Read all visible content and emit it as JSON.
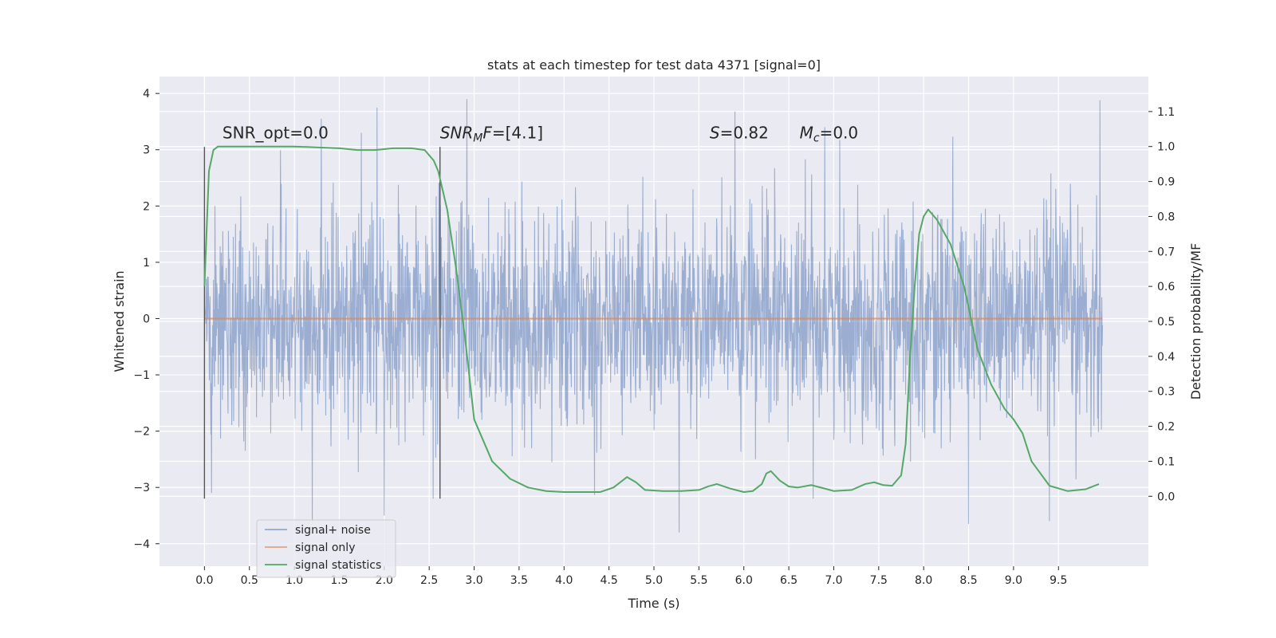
{
  "chart_data": {
    "type": "line",
    "title": "stats at each timestep for test data 4371 [signal=0]",
    "xlabel": "Time (s)",
    "ylabel": "Whitened strain",
    "y2label": "Detection probability/MF",
    "xlim": [
      -0.5,
      10.5
    ],
    "ylim": [
      -4.4,
      4.3
    ],
    "y2lim": [
      -0.2,
      1.2
    ],
    "x_ticks": [
      0.0,
      0.5,
      1.0,
      1.5,
      2.0,
      2.5,
      3.0,
      3.5,
      4.0,
      4.5,
      5.0,
      5.5,
      6.0,
      6.5,
      7.0,
      7.5,
      8.0,
      8.5,
      9.0,
      9.5
    ],
    "x_tick_labels": [
      "0.0",
      "0.5",
      "1.0",
      "1.5",
      "2.0",
      "2.5",
      "3.0",
      "3.5",
      "4.0",
      "4.5",
      "5.0",
      "5.5",
      "6.0",
      "6.5",
      "7.0",
      "7.5",
      "8.0",
      "8.5",
      "9.0",
      "9.5"
    ],
    "y_ticks": [
      -4,
      -3,
      -2,
      -1,
      0,
      1,
      2,
      3,
      4
    ],
    "y_tick_labels": [
      "−4",
      "−3",
      "−2",
      "−1",
      "0",
      "1",
      "2",
      "3",
      "4"
    ],
    "y2_ticks": [
      0.0,
      0.1,
      0.2,
      0.3,
      0.4,
      0.5,
      0.6,
      0.7,
      0.8,
      0.9,
      1.0,
      1.1
    ],
    "y2_tick_labels": [
      "0.0",
      "0.1",
      "0.2",
      "0.3",
      "0.4",
      "0.5",
      "0.6",
      "0.7",
      "0.8",
      "0.9",
      "1.0",
      "1.1"
    ],
    "grid": true,
    "legend_position": "lower-left",
    "series": [
      {
        "name": "signal+ noise",
        "color": "#4c72b0",
        "style": "noise",
        "x_range": [
          0.0,
          9.99
        ],
        "typical_envelope": [
          -1.8,
          1.8
        ],
        "peak_envelope": [
          -3.8,
          3.9
        ],
        "spikes": [
          {
            "x": 0.08,
            "y": -3.1
          },
          {
            "x": 1.2,
            "y": -3.6
          },
          {
            "x": 1.92,
            "y": 3.75
          },
          {
            "x": 2.0,
            "y": -3.5
          },
          {
            "x": 2.92,
            "y": 3.9
          },
          {
            "x": 5.28,
            "y": -3.8
          },
          {
            "x": 5.9,
            "y": 3.68
          },
          {
            "x": 8.5,
            "y": -3.65
          },
          {
            "x": 9.96,
            "y": 3.88
          },
          {
            "x": 9.4,
            "y": -3.6
          },
          {
            "x": 1.3,
            "y": 3.55
          },
          {
            "x": 6.9,
            "y": 3.4
          }
        ]
      },
      {
        "name": "signal only",
        "color": "#dd8452",
        "x": [
          0.0,
          9.99
        ],
        "values": [
          0.0,
          0.0
        ]
      },
      {
        "name": "signal statistics",
        "color": "#55a868",
        "axis": "right",
        "x": [
          0.0,
          0.05,
          0.1,
          0.15,
          0.3,
          0.6,
          1.0,
          1.5,
          1.7,
          1.9,
          2.1,
          2.3,
          2.45,
          2.55,
          2.6,
          2.7,
          2.8,
          2.9,
          3.0,
          3.2,
          3.4,
          3.6,
          3.8,
          4.0,
          4.2,
          4.4,
          4.55,
          4.7,
          4.8,
          4.9,
          5.1,
          5.3,
          5.5,
          5.6,
          5.7,
          5.85,
          6.0,
          6.1,
          6.2,
          6.25,
          6.3,
          6.4,
          6.5,
          6.6,
          6.75,
          6.9,
          7.0,
          7.2,
          7.35,
          7.45,
          7.55,
          7.65,
          7.75,
          7.8,
          7.85,
          7.9,
          7.95,
          8.0,
          8.05,
          8.15,
          8.3,
          8.45,
          8.6,
          8.75,
          8.9,
          9.0,
          9.1,
          9.2,
          9.4,
          9.6,
          9.8,
          9.95
        ],
        "values": [
          0.6,
          0.93,
          0.99,
          1.0,
          1.0,
          1.0,
          1.0,
          0.995,
          0.99,
          0.99,
          0.995,
          0.995,
          0.99,
          0.96,
          0.93,
          0.82,
          0.65,
          0.45,
          0.22,
          0.1,
          0.05,
          0.025,
          0.015,
          0.012,
          0.012,
          0.012,
          0.025,
          0.055,
          0.04,
          0.018,
          0.015,
          0.015,
          0.018,
          0.028,
          0.035,
          0.022,
          0.012,
          0.015,
          0.035,
          0.065,
          0.072,
          0.045,
          0.028,
          0.025,
          0.032,
          0.022,
          0.015,
          0.018,
          0.035,
          0.04,
          0.032,
          0.03,
          0.06,
          0.15,
          0.4,
          0.6,
          0.75,
          0.8,
          0.82,
          0.79,
          0.72,
          0.6,
          0.42,
          0.32,
          0.25,
          0.22,
          0.18,
          0.1,
          0.03,
          0.015,
          0.02,
          0.035
        ]
      }
    ],
    "vertical_markers": [
      0.0,
      2.62
    ],
    "vertical_marker_range": [
      -3.2,
      3.05
    ],
    "annotations": [
      {
        "text": "SNR_opt=0.0",
        "x": 0.2,
        "y": 3.2,
        "style": "plain"
      },
      {
        "text_parts": [
          {
            "t": "SNR",
            "italic": true
          },
          {
            "t": "M",
            "italic": true,
            "sub": true
          },
          {
            "t": "F",
            "italic": true
          },
          {
            "t": "=[4.1]",
            "italic": false
          }
        ],
        "x": 2.62,
        "y": 3.2
      },
      {
        "text_parts": [
          {
            "t": "S",
            "italic": true
          },
          {
            "t": "=0.82",
            "italic": false
          }
        ],
        "x": 5.62,
        "y": 3.2
      },
      {
        "text_parts": [
          {
            "t": "M",
            "italic": true
          },
          {
            "t": "c",
            "italic": true,
            "sub": true
          },
          {
            "t": "=0.0",
            "italic": false
          }
        ],
        "x": 6.62,
        "y": 3.2
      }
    ],
    "legend": [
      {
        "label": "signal+ noise",
        "color": "#4c72b0",
        "alpha": 0.55
      },
      {
        "label": "signal only",
        "color": "#dd8452",
        "alpha": 0.7
      },
      {
        "label": "signal statistics",
        "color": "#55a868",
        "alpha": 1
      }
    ]
  }
}
